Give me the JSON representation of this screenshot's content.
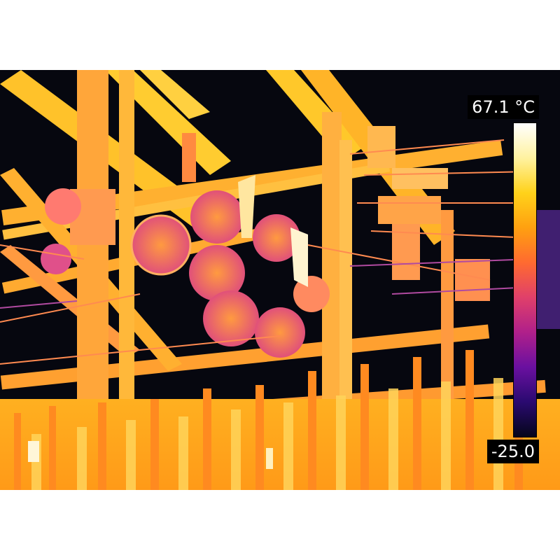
{
  "thermal_scale": {
    "max_label": "67.1 °C",
    "min_label": "-25.0",
    "palette": [
      "#ffffff",
      "#fff2a0",
      "#ffd21a",
      "#ffa010",
      "#ff6a30",
      "#e0406a",
      "#b0208a",
      "#6a10a0",
      "#2a0a70",
      "#05061a"
    ]
  },
  "image": {
    "description_icon": "thermal-substation-scene"
  }
}
